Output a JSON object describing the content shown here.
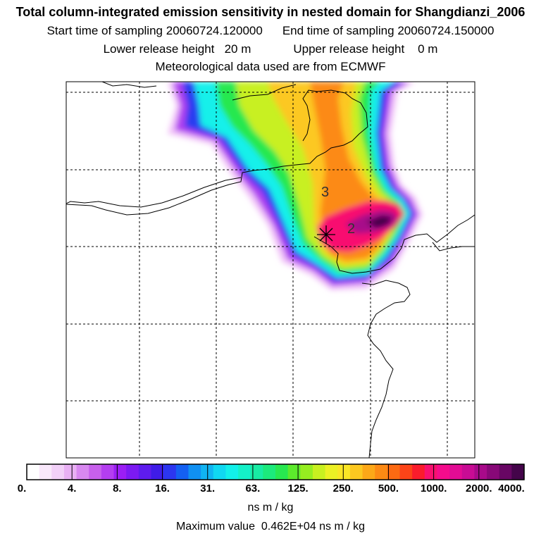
{
  "title": "Total column-integrated emission sensitivity in nested domain for Shangdianzi_2006",
  "sampling": {
    "start_label": "Start time of sampling",
    "start_value": "20060724.120000",
    "end_label": "End time of sampling",
    "end_value": "20060724.150000"
  },
  "release": {
    "lower_label": "Lower release height",
    "lower_value": "20 m",
    "upper_label": "Upper release height",
    "upper_value": "0 m"
  },
  "met_line": "Meteorological data used are from ECMWF",
  "station_marker": "*",
  "day_labels": [
    "3",
    "2"
  ],
  "colorbar": {
    "ticks": [
      "0.",
      "4.",
      "8.",
      "16.",
      "31.",
      "63.",
      "125.",
      "250.",
      "500.",
      "1000.",
      "2000.",
      "4000."
    ],
    "colors": [
      "#ffffff",
      "#f9e8fb",
      "#f2d0f8",
      "#e9b0f4",
      "#d888f0",
      "#c860ec",
      "#b43ef0",
      "#9b1ef4",
      "#7c1af2",
      "#5e1cee",
      "#3f1ce8",
      "#2c36f0",
      "#1460f2",
      "#1090f2",
      "#10b4f2",
      "#10d8f2",
      "#12f0ea",
      "#14f0c8",
      "#18eca4",
      "#1cea7c",
      "#28e850",
      "#5cea2c",
      "#96ee20",
      "#c8f020",
      "#ecf024",
      "#fae626",
      "#fcc820",
      "#fca818",
      "#fc8a14",
      "#fc6a12",
      "#fc4418",
      "#fa1c2c",
      "#f81070",
      "#f40c8c",
      "#e20c94",
      "#c80c94",
      "#a80a8a",
      "#880878",
      "#680664",
      "#44044a"
    ],
    "units": "ns m / kg"
  },
  "max_label": "Maximum value",
  "max_value": "0.462E+04 ns m / kg",
  "chart_data": {
    "type": "heatmap",
    "title": "Total column-integrated emission sensitivity in nested domain for Shangdianzi_2006",
    "colorbar_levels": [
      0,
      4,
      8,
      16,
      31,
      63,
      125,
      250,
      500,
      1000,
      2000,
      4000
    ],
    "colorbar_units": "ns m / kg",
    "maximum_value": 4620,
    "grid": true,
    "legend": "colorbar bottom"
  }
}
